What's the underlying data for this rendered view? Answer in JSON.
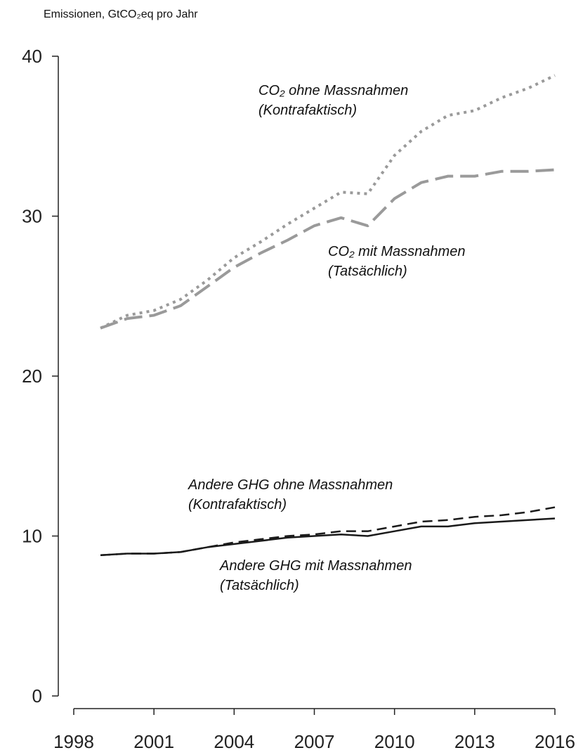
{
  "chart_data": {
    "type": "line",
    "y_axis_label": "Emissionen, GtCO₂eq pro Jahr",
    "x": [
      1999,
      2000,
      2001,
      2002,
      2003,
      2004,
      2005,
      2006,
      2007,
      2008,
      2009,
      2010,
      2011,
      2012,
      2013,
      2014,
      2015,
      2016
    ],
    "xlim": [
      1998,
      2016
    ],
    "xticks": [
      1998,
      2001,
      2004,
      2007,
      2010,
      2013,
      2016
    ],
    "ylim": [
      0,
      40
    ],
    "yticks": [
      0,
      10,
      20,
      30,
      40
    ],
    "series": [
      {
        "name": "CO₂ ohne Massnahmen (Kontrafaktisch)",
        "color": "#9a9a9a",
        "dash": "dotted",
        "values": [
          23.0,
          23.8,
          24.1,
          24.8,
          26.0,
          27.4,
          28.4,
          29.5,
          30.5,
          31.5,
          31.4,
          33.8,
          35.3,
          36.3,
          36.6,
          37.4,
          38.0,
          38.8
        ]
      },
      {
        "name": "CO₂ mit Massnahmen (Tatsächlich)",
        "color": "#9a9a9a",
        "dash": "longdash",
        "values": [
          23.0,
          23.6,
          23.8,
          24.4,
          25.6,
          26.8,
          27.7,
          28.5,
          29.4,
          29.9,
          29.4,
          31.1,
          32.1,
          32.5,
          32.5,
          32.8,
          32.8,
          32.9
        ]
      },
      {
        "name": "Andere GHG ohne Massnahmen (Kontrafaktisch)",
        "color": "#1a1a1a",
        "dash": "dashed",
        "values": [
          8.8,
          8.9,
          8.9,
          9.0,
          9.3,
          9.6,
          9.8,
          10.0,
          10.1,
          10.3,
          10.3,
          10.6,
          10.9,
          11.0,
          11.2,
          11.3,
          11.5,
          11.8
        ]
      },
      {
        "name": "Andere GHG mit Massnahmen (Tatsächlich)",
        "color": "#1a1a1a",
        "dash": "solid",
        "values": [
          8.8,
          8.9,
          8.9,
          9.0,
          9.3,
          9.5,
          9.7,
          9.9,
          10.0,
          10.1,
          10.0,
          10.3,
          10.6,
          10.6,
          10.8,
          10.9,
          11.0,
          11.1
        ]
      }
    ]
  }
}
